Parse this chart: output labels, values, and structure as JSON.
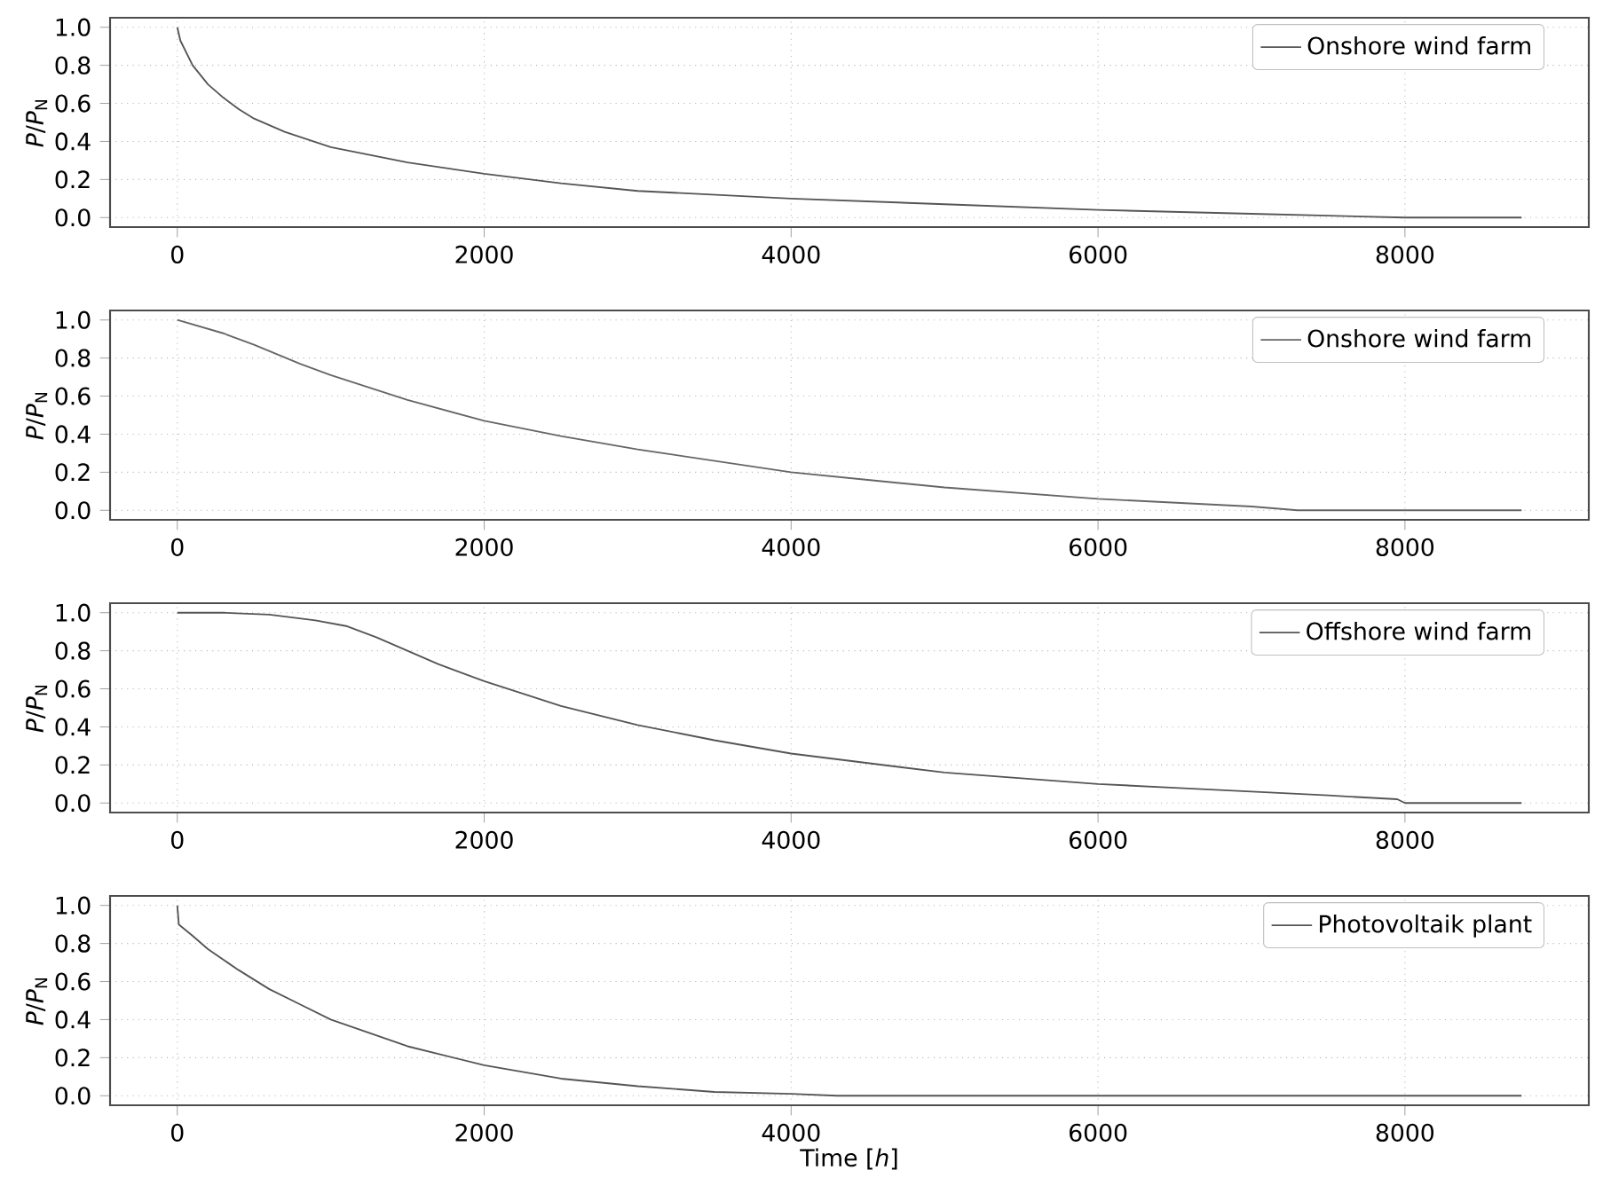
{
  "chart_data": [
    {
      "type": "line",
      "ylabel": "*P*/*P*$_{N}$",
      "xlim": [
        -438,
        9198
      ],
      "ylim": [
        -0.05,
        1.05
      ],
      "xticks": [
        0,
        2000,
        4000,
        6000,
        8000
      ],
      "yticks": [
        {
          "value": 0,
          "label": "0.0"
        },
        {
          "value": 0.2,
          "label": "0.2"
        },
        {
          "value": 0.4,
          "label": "0.4"
        },
        {
          "value": 0.6,
          "label": "0.6"
        },
        {
          "value": 0.8,
          "label": "0.8"
        },
        {
          "value": 1,
          "label": "1.0"
        }
      ],
      "grid": true,
      "legend": "top right",
      "x": [
        0,
        20,
        100,
        200,
        300,
        400,
        500,
        700,
        1000,
        1500,
        2000,
        2500,
        3000,
        4000,
        5000,
        6000,
        7000,
        7500,
        8000,
        8760
      ],
      "series": [
        {
          "name": "Onshore wind farm",
          "color": "#555555",
          "values": [
            1.0,
            0.93,
            0.8,
            0.7,
            0.63,
            0.57,
            0.52,
            0.45,
            0.37,
            0.29,
            0.23,
            0.18,
            0.14,
            0.1,
            0.07,
            0.04,
            0.02,
            0.01,
            0,
            0
          ]
        }
      ]
    },
    {
      "type": "line",
      "ylabel": "*P*/*P*$_{N}$",
      "xlim": [
        -438,
        9198
      ],
      "ylim": [
        -0.05,
        1.05
      ],
      "xticks": [
        0,
        2000,
        4000,
        6000,
        8000
      ],
      "yticks": [
        {
          "value": 0,
          "label": "0.0"
        },
        {
          "value": 0.2,
          "label": "0.2"
        },
        {
          "value": 0.4,
          "label": "0.4"
        },
        {
          "value": 0.6,
          "label": "0.6"
        },
        {
          "value": 0.8,
          "label": "0.8"
        },
        {
          "value": 1,
          "label": "1.0"
        }
      ],
      "grid": true,
      "legend": "top right",
      "x": [
        0,
        300,
        500,
        800,
        1000,
        1500,
        2000,
        2500,
        3000,
        3500,
        4000,
        4500,
        5000,
        5500,
        6000,
        6500,
        7000,
        7300,
        8760
      ],
      "series": [
        {
          "name": "Onshore wind farm",
          "color": "#666666",
          "values": [
            1.0,
            0.93,
            0.87,
            0.77,
            0.71,
            0.58,
            0.47,
            0.39,
            0.32,
            0.26,
            0.2,
            0.16,
            0.12,
            0.09,
            0.06,
            0.04,
            0.02,
            0,
            0
          ]
        }
      ]
    },
    {
      "type": "line",
      "ylabel": "*P*/*P*$_{N}$",
      "xlim": [
        -438,
        9198
      ],
      "ylim": [
        -0.05,
        1.05
      ],
      "xticks": [
        0,
        2000,
        4000,
        6000,
        8000
      ],
      "yticks": [
        {
          "value": 0,
          "label": "0.0"
        },
        {
          "value": 0.2,
          "label": "0.2"
        },
        {
          "value": 0.4,
          "label": "0.4"
        },
        {
          "value": 0.6,
          "label": "0.6"
        },
        {
          "value": 0.8,
          "label": "0.8"
        },
        {
          "value": 1,
          "label": "1.0"
        }
      ],
      "grid": true,
      "legend": "top right",
      "x": [
        0,
        300,
        600,
        900,
        1100,
        1300,
        1500,
        1700,
        2000,
        2500,
        3000,
        3500,
        4000,
        4500,
        5000,
        5500,
        6000,
        6500,
        7000,
        7500,
        7950,
        8000,
        8760
      ],
      "series": [
        {
          "name": "Offshore wind farm",
          "color": "#555555",
          "values": [
            1.0,
            1.0,
            0.99,
            0.96,
            0.93,
            0.87,
            0.8,
            0.73,
            0.64,
            0.51,
            0.41,
            0.33,
            0.26,
            0.21,
            0.16,
            0.13,
            0.1,
            0.08,
            0.06,
            0.04,
            0.02,
            0,
            0
          ]
        }
      ]
    },
    {
      "type": "line",
      "xlabel": "Time [*h*]",
      "ylabel": "*P*/*P*$_{N}$",
      "xlim": [
        -438,
        9198
      ],
      "ylim": [
        -0.05,
        1.05
      ],
      "xticks": [
        0,
        2000,
        4000,
        6000,
        8000
      ],
      "yticks": [
        {
          "value": 0,
          "label": "0.0"
        },
        {
          "value": 0.2,
          "label": "0.2"
        },
        {
          "value": 0.4,
          "label": "0.4"
        },
        {
          "value": 0.6,
          "label": "0.6"
        },
        {
          "value": 0.8,
          "label": "0.8"
        },
        {
          "value": 1,
          "label": "1.0"
        }
      ],
      "grid": true,
      "legend": "top right",
      "x": [
        0,
        10,
        100,
        200,
        400,
        600,
        800,
        1000,
        1500,
        2000,
        2500,
        3000,
        3500,
        4000,
        4300,
        8760
      ],
      "series": [
        {
          "name": "Photovoltaik plant",
          "color": "#555555",
          "values": [
            1.0,
            0.9,
            0.84,
            0.77,
            0.66,
            0.56,
            0.48,
            0.4,
            0.26,
            0.16,
            0.09,
            0.05,
            0.02,
            0.01,
            0,
            0
          ]
        }
      ]
    }
  ]
}
